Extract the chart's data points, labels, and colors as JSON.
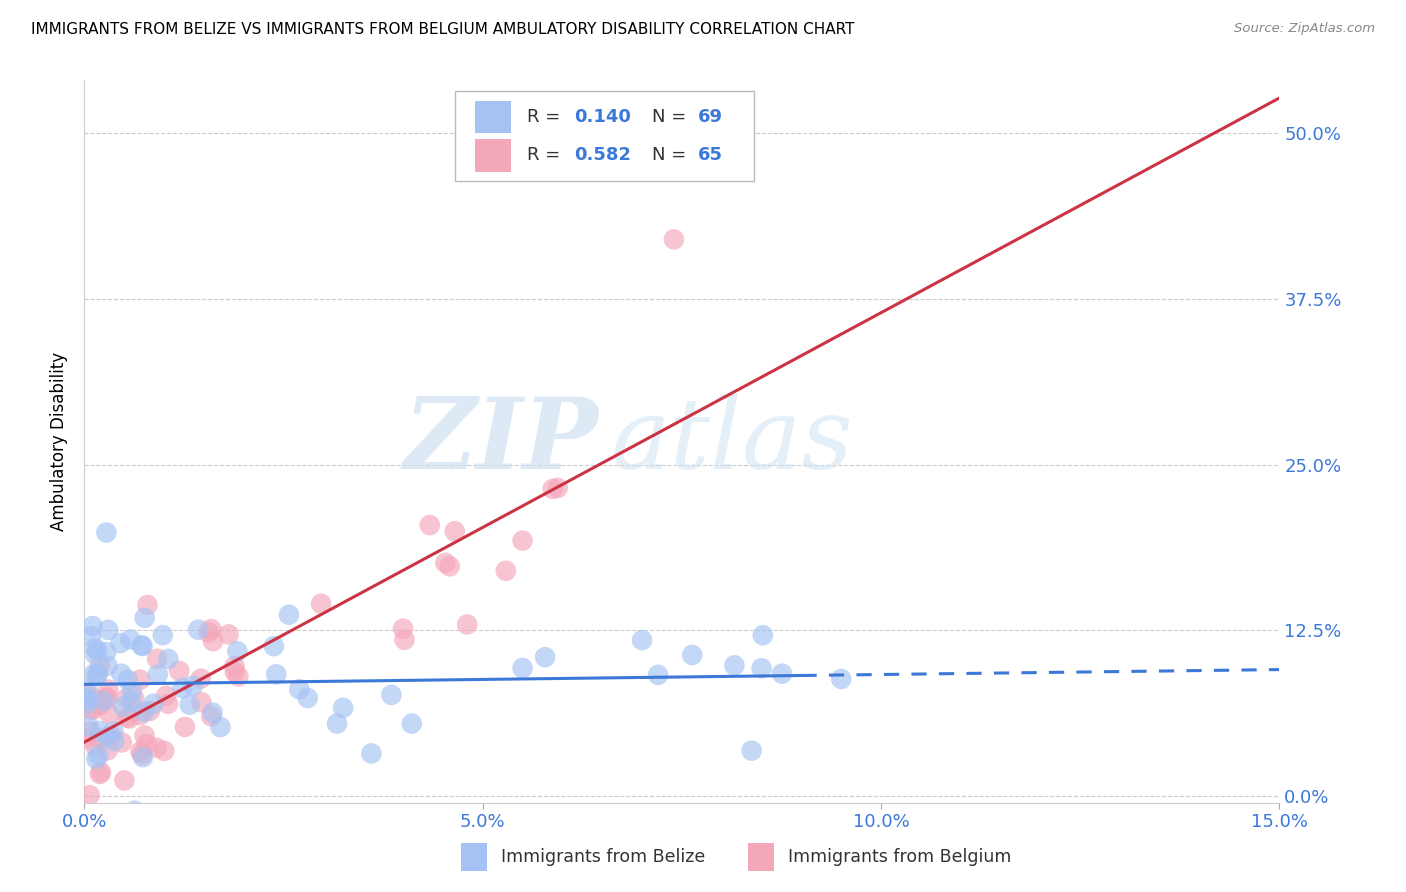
{
  "title": "IMMIGRANTS FROM BELIZE VS IMMIGRANTS FROM BELGIUM AMBULATORY DISABILITY CORRELATION CHART",
  "source": "Source: ZipAtlas.com",
  "ylabel": "Ambulatory Disability",
  "xlim": [
    0.0,
    0.15
  ],
  "ylim": [
    -0.005,
    0.54
  ],
  "yticks": [
    0.0,
    0.125,
    0.25,
    0.375,
    0.5
  ],
  "ytick_labels": [
    "0.0%",
    "12.5%",
    "25.0%",
    "37.5%",
    "50.0%"
  ],
  "xticks": [
    0.0,
    0.05,
    0.1,
    0.15
  ],
  "xtick_labels": [
    "0.0%",
    "5.0%",
    "10.0%",
    "15.0%"
  ],
  "belize_color": "#a4c2f4",
  "belgium_color": "#f4a7b9",
  "belize_line_color": "#3c78d8",
  "belgium_line_color": "#cc3344",
  "legend_r_belize": "0.140",
  "legend_n_belize": "69",
  "legend_r_belgium": "0.582",
  "legend_n_belgium": "65",
  "watermark_zip": "ZIP",
  "watermark_atlas": "atlas",
  "background_color": "#ffffff",
  "grid_color": "#cccccc",
  "tick_label_color": "#3c78d8"
}
